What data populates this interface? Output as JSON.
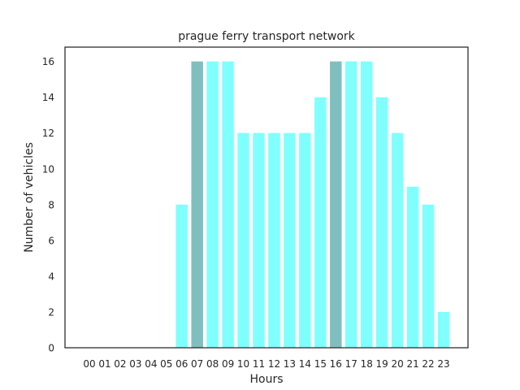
{
  "chart_data": {
    "type": "bar",
    "title": "prague ferry transport network",
    "xlabel": "Hours",
    "ylabel": "Number of vehicles",
    "categories": [
      "00",
      "01",
      "02",
      "03",
      "04",
      "05",
      "06",
      "07",
      "08",
      "09",
      "10",
      "11",
      "12",
      "13",
      "14",
      "15",
      "16",
      "17",
      "18",
      "19",
      "20",
      "21",
      "22",
      "23"
    ],
    "values": [
      0,
      0,
      0,
      0,
      0,
      0,
      8,
      16,
      16,
      16,
      12,
      12,
      12,
      12,
      12,
      14,
      16,
      16,
      16,
      14,
      12,
      9,
      8,
      2
    ],
    "highlighted": [
      "07",
      "16"
    ],
    "yticks": [
      0,
      2,
      4,
      6,
      8,
      10,
      12,
      14,
      16
    ],
    "ylim": [
      0,
      16.8
    ],
    "grid": false,
    "colors": {
      "bar": "#80ffff",
      "highlight": "#80bfbf",
      "axes": "#262626"
    }
  }
}
